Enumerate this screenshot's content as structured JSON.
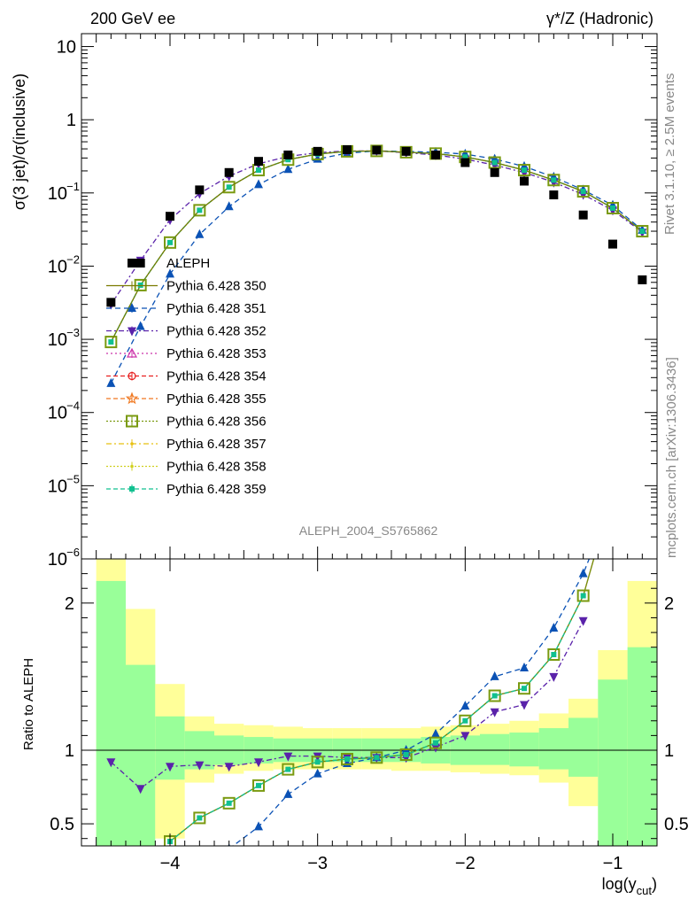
{
  "header": {
    "left": "200 GeV ee",
    "right_base": "γ*/Z (Hadronic)"
  },
  "side_labels": {
    "rivet": "Rivet 3.1.10, ≥ 2.5M events",
    "mcplots": "mcplots.cern.ch [arXiv:1306.3436]"
  },
  "analysis_label": "ALEPH_2004_S5765862",
  "colors": {
    "data": "#000000",
    "band_inner": "#99ff99",
    "band_outer": "#ffff99",
    "s350": "#7a7a00",
    "s351": "#0b52b5",
    "s352": "#5a22aa",
    "s353": "#cc33aa",
    "s354": "#e82020",
    "s355": "#f07820",
    "s356": "#7a9a10",
    "s357": "#e8c010",
    "s358": "#d0d020",
    "s359": "#10c090"
  },
  "chart_data": {
    "type": "scatter",
    "xlabel": "log(y_cut)",
    "ylabel": "σ(3 jet)/σ(inclusive)",
    "ratio_ylabel": "Ratio to ALEPH",
    "xlim": [
      -4.6,
      -0.7
    ],
    "ylim": [
      1e-06,
      15
    ],
    "yscale": "log",
    "ratio_ylim": [
      0.35,
      2.3
    ],
    "x_ticks": [
      -4,
      -3,
      -2,
      -1
    ],
    "x_tick_labels": [
      "−4",
      "−3",
      "−2",
      "−1"
    ],
    "y_ticks": [
      {
        "exp": 1,
        "label": "10"
      },
      {
        "exp": 0,
        "label": "1"
      },
      {
        "exp": -1,
        "label": "10",
        "sup": "−1"
      },
      {
        "exp": -2,
        "label": "10",
        "sup": "−2"
      },
      {
        "exp": -3,
        "label": "10",
        "sup": "−3"
      },
      {
        "exp": -4,
        "label": "10",
        "sup": "−4"
      },
      {
        "exp": -5,
        "label": "10",
        "sup": "−5"
      },
      {
        "exp": -6,
        "label": "10",
        "sup": "−6"
      }
    ],
    "ratio_ticks": [
      {
        "v": 2,
        "label": "2"
      },
      {
        "v": 1,
        "label": "1"
      },
      {
        "v": 0.5,
        "label": "0.5"
      }
    ],
    "legend_position": "left-middle",
    "series": [
      {
        "key": "data",
        "name": "ALEPH",
        "marker": "square",
        "x": [
          -4.4,
          -4.2,
          -4.0,
          -3.8,
          -3.6,
          -3.4,
          -3.2,
          -3.0,
          -2.8,
          -2.6,
          -2.4,
          -2.2,
          -2.0,
          -1.8,
          -1.6,
          -1.4,
          -1.2,
          -1.0,
          -0.8
        ],
        "y": [
          0.0032,
          0.011,
          0.048,
          0.11,
          0.19,
          0.27,
          0.33,
          0.37,
          0.39,
          0.385,
          0.37,
          0.33,
          0.26,
          0.19,
          0.145,
          0.094,
          0.05,
          0.02,
          0.0065
        ]
      },
      {
        "key": "s350",
        "name": "Pythia 6.428 350",
        "marker": "none",
        "x": [
          -4.4,
          -4.2,
          -4.0,
          -3.8,
          -3.6,
          -3.4,
          -3.2,
          -3.0,
          -2.8,
          -2.6,
          -2.4,
          -2.2,
          -2.0,
          -1.8,
          -1.6,
          -1.4,
          -1.2,
          -1.0,
          -0.8
        ],
        "y": [
          0.00092,
          0.0055,
          0.021,
          0.058,
          0.12,
          0.205,
          0.285,
          0.34,
          0.37,
          0.375,
          0.36,
          0.345,
          0.31,
          0.26,
          0.205,
          0.15,
          0.105,
          0.062,
          0.03
        ]
      },
      {
        "key": "s351",
        "name": "Pythia 6.428 351",
        "marker": "triangle-up",
        "x": [
          -4.4,
          -4.2,
          -4.0,
          -3.8,
          -3.6,
          -3.4,
          -3.2,
          -3.0,
          -2.8,
          -2.6,
          -2.4,
          -2.2,
          -2.0,
          -1.8,
          -1.6,
          -1.4,
          -1.2,
          -1.0,
          -0.8
        ],
        "y": [
          0.00025,
          0.0015,
          0.0078,
          0.027,
          0.065,
          0.13,
          0.21,
          0.29,
          0.35,
          0.375,
          0.37,
          0.36,
          0.34,
          0.29,
          0.23,
          0.165,
          0.11,
          0.068,
          0.031
        ]
      },
      {
        "key": "s352",
        "name": "Pythia 6.428 352",
        "marker": "triangle-down",
        "x": [
          -4.4,
          -4.2,
          -4.0,
          -3.8,
          -3.6,
          -3.4,
          -3.2,
          -3.0,
          -2.8,
          -2.6,
          -2.4,
          -2.2,
          -2.0,
          -1.8,
          -1.6,
          -1.4,
          -1.2,
          -1.0,
          -0.8
        ],
        "y": [
          0.003,
          0.012,
          0.043,
          0.098,
          0.17,
          0.25,
          0.315,
          0.355,
          0.375,
          0.375,
          0.355,
          0.33,
          0.29,
          0.24,
          0.19,
          0.14,
          0.095,
          0.058,
          0.029
        ]
      },
      {
        "key": "s353",
        "name": "Pythia 6.428 353",
        "marker": "triangle-open",
        "x": [],
        "y": []
      },
      {
        "key": "s354",
        "name": "Pythia 6.428 354",
        "marker": "circle-open",
        "x": [],
        "y": []
      },
      {
        "key": "s355",
        "name": "Pythia 6.428 355",
        "marker": "star-open",
        "x": [],
        "y": []
      },
      {
        "key": "s356",
        "name": "Pythia 6.428 356",
        "marker": "square-open",
        "x": [
          -4.4,
          -4.2,
          -4.0,
          -3.8,
          -3.6,
          -3.4,
          -3.2,
          -3.0,
          -2.8,
          -2.6,
          -2.4,
          -2.2,
          -2.0,
          -1.8,
          -1.6,
          -1.4,
          -1.2,
          -1.0,
          -0.8
        ],
        "y": [
          0.00092,
          0.0055,
          0.021,
          0.058,
          0.12,
          0.205,
          0.285,
          0.34,
          0.37,
          0.375,
          0.36,
          0.345,
          0.31,
          0.26,
          0.205,
          0.15,
          0.105,
          0.062,
          0.03
        ]
      },
      {
        "key": "s357",
        "name": "Pythia 6.428 357",
        "marker": "dot",
        "x": [],
        "y": []
      },
      {
        "key": "s358",
        "name": "Pythia 6.428 358",
        "marker": "dot",
        "x": [],
        "y": []
      },
      {
        "key": "s359",
        "name": "Pythia 6.428 359",
        "marker": "square-small",
        "x": [
          -4.4,
          -4.2,
          -4.0,
          -3.8,
          -3.6,
          -3.4,
          -3.2,
          -3.0,
          -2.8,
          -2.6,
          -2.4,
          -2.2,
          -2.0,
          -1.8,
          -1.6,
          -1.4,
          -1.2,
          -1.0,
          -0.8
        ],
        "y": [
          0.00092,
          0.0055,
          0.021,
          0.058,
          0.12,
          0.205,
          0.285,
          0.34,
          0.37,
          0.375,
          0.36,
          0.345,
          0.31,
          0.26,
          0.205,
          0.15,
          0.105,
          0.062,
          0.03
        ]
      }
    ],
    "ratio_series": [
      {
        "key": "s350",
        "x": [
          -4.0,
          -3.8,
          -3.6,
          -3.4,
          -3.2,
          -3.0,
          -2.8,
          -2.6,
          -2.4,
          -2.2,
          -2.0,
          -1.8,
          -1.6,
          -1.4,
          -1.2,
          -1.1
        ],
        "y": [
          0.38,
          0.54,
          0.64,
          0.76,
          0.87,
          0.92,
          0.94,
          0.95,
          0.97,
          1.05,
          1.2,
          1.37,
          1.42,
          1.65,
          2.05,
          2.4
        ]
      },
      {
        "key": "s351",
        "x": [
          -3.6,
          -3.4,
          -3.2,
          -3.0,
          -2.8,
          -2.6,
          -2.4,
          -2.2,
          -2.0,
          -1.8,
          -1.6,
          -1.4,
          -1.2,
          -1.1
        ],
        "y": [
          0.33,
          0.48,
          0.7,
          0.84,
          0.91,
          0.95,
          1.0,
          1.11,
          1.3,
          1.5,
          1.56,
          1.83,
          2.2,
          2.45
        ]
      },
      {
        "key": "s352",
        "x": [
          -4.4,
          -4.2,
          -4.0,
          -3.8,
          -3.6,
          -3.4,
          -3.2,
          -3.0,
          -2.8,
          -2.6,
          -2.4,
          -2.2,
          -2.0,
          -1.8,
          -1.6,
          -1.4,
          -1.2
        ],
        "y": [
          0.92,
          0.74,
          0.89,
          0.9,
          0.89,
          0.92,
          0.96,
          0.96,
          0.95,
          0.95,
          0.95,
          1.02,
          1.1,
          1.26,
          1.31,
          1.5,
          1.88
        ]
      },
      {
        "key": "s359",
        "x": [
          -4.0,
          -3.8,
          -3.6,
          -3.4,
          -3.2,
          -3.0,
          -2.8,
          -2.6,
          -2.4,
          -2.2,
          -2.0,
          -1.8,
          -1.6,
          -1.4,
          -1.2
        ],
        "y": [
          0.38,
          0.54,
          0.64,
          0.76,
          0.87,
          0.92,
          0.94,
          0.95,
          0.97,
          1.05,
          1.2,
          1.37,
          1.42,
          1.65,
          2.05
        ]
      }
    ],
    "ratio_bands": [
      {
        "x0": -4.5,
        "x1": -4.3,
        "inner": [
          0.35,
          2.15
        ],
        "outer": [
          0.35,
          2.3
        ]
      },
      {
        "x0": -4.3,
        "x1": -4.1,
        "inner": [
          0.35,
          1.58
        ],
        "outer": [
          0.35,
          1.96
        ]
      },
      {
        "x0": -4.1,
        "x1": -3.9,
        "inner": [
          0.8,
          1.23
        ],
        "outer": [
          0.4,
          1.45
        ]
      },
      {
        "x0": -3.9,
        "x1": -3.7,
        "inner": [
          0.87,
          1.13
        ],
        "outer": [
          0.78,
          1.23
        ]
      },
      {
        "x0": -3.7,
        "x1": -3.5,
        "inner": [
          0.9,
          1.1
        ],
        "outer": [
          0.84,
          1.18
        ]
      },
      {
        "x0": -3.5,
        "x1": -3.3,
        "inner": [
          0.91,
          1.09
        ],
        "outer": [
          0.86,
          1.17
        ]
      },
      {
        "x0": -3.3,
        "x1": -3.1,
        "inner": [
          0.92,
          1.08
        ],
        "outer": [
          0.87,
          1.16
        ]
      },
      {
        "x0": -3.1,
        "x1": -2.9,
        "inner": [
          0.92,
          1.08
        ],
        "outer": [
          0.87,
          1.15
        ]
      },
      {
        "x0": -2.9,
        "x1": -2.7,
        "inner": [
          0.92,
          1.08
        ],
        "outer": [
          0.87,
          1.15
        ]
      },
      {
        "x0": -2.7,
        "x1": -2.5,
        "inner": [
          0.92,
          1.08
        ],
        "outer": [
          0.87,
          1.15
        ]
      },
      {
        "x0": -2.5,
        "x1": -2.3,
        "inner": [
          0.92,
          1.08
        ],
        "outer": [
          0.86,
          1.15
        ]
      },
      {
        "x0": -2.3,
        "x1": -2.1,
        "inner": [
          0.91,
          1.09
        ],
        "outer": [
          0.86,
          1.16
        ]
      },
      {
        "x0": -2.1,
        "x1": -1.9,
        "inner": [
          0.9,
          1.1
        ],
        "outer": [
          0.85,
          1.17
        ]
      },
      {
        "x0": -1.9,
        "x1": -1.7,
        "inner": [
          0.9,
          1.11
        ],
        "outer": [
          0.84,
          1.18
        ]
      },
      {
        "x0": -1.7,
        "x1": -1.5,
        "inner": [
          0.89,
          1.12
        ],
        "outer": [
          0.83,
          1.2
        ]
      },
      {
        "x0": -1.5,
        "x1": -1.3,
        "inner": [
          0.87,
          1.15
        ],
        "outer": [
          0.78,
          1.25
        ]
      },
      {
        "x0": -1.3,
        "x1": -1.1,
        "inner": [
          0.82,
          1.22
        ],
        "outer": [
          0.62,
          1.35
        ]
      },
      {
        "x0": -1.1,
        "x1": -0.9,
        "inner": [
          0.35,
          1.48
        ],
        "outer": [
          0.35,
          1.68
        ]
      },
      {
        "x0": -0.9,
        "x1": -0.7,
        "inner": [
          0.35,
          1.7
        ],
        "outer": [
          0.35,
          2.15
        ]
      }
    ]
  }
}
